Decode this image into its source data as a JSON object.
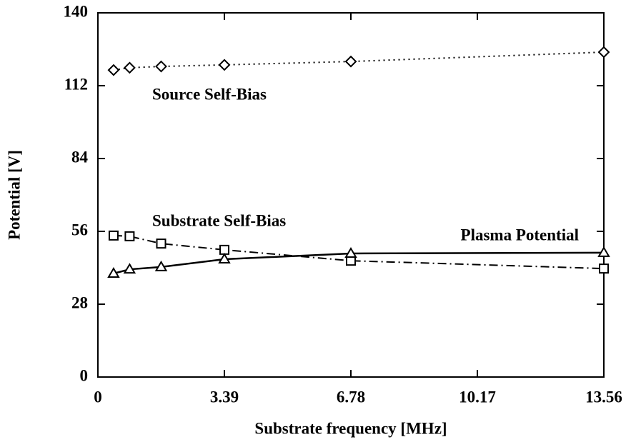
{
  "chart_data": {
    "type": "line",
    "xlabel": "Substrate frequency [MHz]",
    "ylabel": "Potential [V]",
    "x": [
      0.42,
      0.85,
      1.695,
      3.39,
      6.78,
      13.56
    ],
    "series": [
      {
        "name": "Source Self-Bias",
        "color": "#000000",
        "linestyle": "dotted",
        "marker": "diamond",
        "values": [
          118,
          118.9,
          119.4,
          120,
          121.3,
          124.9
        ]
      },
      {
        "name": "Substrate Self-Bias",
        "color": "#000000",
        "linestyle": "dashdot",
        "marker": "square",
        "values": [
          54.4,
          54.1,
          51.3,
          48.9,
          44.7,
          41.7
        ]
      },
      {
        "name": "Plasma Potential",
        "color": "#000000",
        "linestyle": "solid",
        "marker": "triangle",
        "values": [
          39.8,
          41.4,
          42.3,
          45.3,
          47.5,
          47.8
        ]
      }
    ],
    "xlim": [
      0,
      13.56
    ],
    "xticks": [
      0,
      3.39,
      6.78,
      10.17,
      13.56
    ],
    "ylim": [
      0,
      140
    ],
    "yticks": [
      0,
      28,
      56,
      84,
      112,
      140
    ],
    "grid": false
  }
}
